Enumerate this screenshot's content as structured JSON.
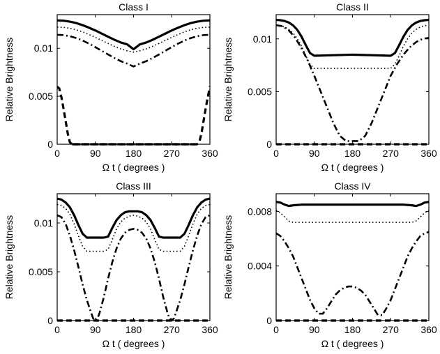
{
  "figure": {
    "background": "#ffffff",
    "line_color": "#000000"
  },
  "chart_data": [
    {
      "type": "line",
      "title": "Class I",
      "xlabel": "Ω t ( degrees )",
      "ylabel": "Relative Brightness",
      "xlim": [
        0,
        360
      ],
      "ylim": [
        0,
        0.0135
      ],
      "xticks": [
        0,
        90,
        180,
        270,
        360
      ],
      "xtick_labels": [
        "0",
        "90",
        "180",
        "270",
        "360"
      ],
      "yticks": [
        0,
        0.005,
        0.01
      ],
      "ytick_labels": [
        "0",
        "0.005",
        "0.01"
      ],
      "grid": false,
      "series": [
        {
          "style": "solid",
          "x": [
            0,
            15,
            30,
            45,
            60,
            75,
            90,
            105,
            120,
            135,
            150,
            165,
            180,
            195,
            210,
            225,
            240,
            255,
            270,
            285,
            300,
            315,
            330,
            345,
            360
          ],
          "y": [
            0.0129,
            0.01287,
            0.01277,
            0.01262,
            0.0124,
            0.01214,
            0.01185,
            0.01153,
            0.0112,
            0.01088,
            0.0106,
            0.0104,
            0.0099,
            0.0104,
            0.0106,
            0.01088,
            0.0112,
            0.01153,
            0.01185,
            0.01214,
            0.0124,
            0.01262,
            0.01277,
            0.01287,
            0.0129
          ]
        },
        {
          "style": "dotted",
          "x": [
            0,
            15,
            30,
            45,
            60,
            75,
            90,
            105,
            120,
            135,
            150,
            165,
            180,
            195,
            210,
            225,
            240,
            255,
            270,
            285,
            300,
            315,
            330,
            345,
            360
          ],
          "y": [
            0.0122,
            0.01217,
            0.01208,
            0.01192,
            0.0117,
            0.01143,
            0.01113,
            0.01082,
            0.0105,
            0.0102,
            0.00993,
            0.00973,
            0.0096,
            0.00973,
            0.00993,
            0.0102,
            0.0105,
            0.01082,
            0.01113,
            0.01143,
            0.0117,
            0.01192,
            0.01208,
            0.01217,
            0.0122
          ]
        },
        {
          "style": "dashdot",
          "x": [
            0,
            15,
            30,
            45,
            60,
            75,
            90,
            105,
            120,
            135,
            150,
            165,
            180,
            195,
            210,
            225,
            240,
            255,
            270,
            285,
            300,
            315,
            330,
            345,
            360
          ],
          "y": [
            0.0114,
            0.01137,
            0.01125,
            0.01106,
            0.0108,
            0.01048,
            0.01012,
            0.00973,
            0.00935,
            0.00898,
            0.00865,
            0.0084,
            0.0081,
            0.0084,
            0.00865,
            0.00898,
            0.00935,
            0.00973,
            0.01012,
            0.01048,
            0.0108,
            0.01106,
            0.01125,
            0.01137,
            0.0114
          ]
        },
        {
          "style": "dashed",
          "x": [
            0,
            5,
            10,
            15,
            20,
            25,
            30,
            35,
            330,
            335,
            340,
            345,
            350,
            355,
            360
          ],
          "y": [
            0.006,
            0.0058,
            0.0049,
            0.0037,
            0.0024,
            0.0011,
            0.0002,
            0,
            0,
            0.0002,
            0.0011,
            0.0024,
            0.0037,
            0.0049,
            0.006
          ]
        },
        {
          "style": "dashed",
          "x": [
            35,
            330
          ],
          "y": [
            0,
            0
          ]
        }
      ]
    },
    {
      "type": "line",
      "title": "Class II",
      "xlabel": "Ω t ( degrees )",
      "ylabel": "Relative Brightness",
      "xlim": [
        0,
        360
      ],
      "ylim": [
        0,
        0.0123
      ],
      "xticks": [
        0,
        90,
        180,
        270,
        360
      ],
      "xtick_labels": [
        "0",
        "90",
        "180",
        "270",
        "360"
      ],
      "yticks": [
        0,
        0.005,
        0.01
      ],
      "ytick_labels": [
        "0",
        "0.005",
        "0.01"
      ],
      "grid": false,
      "series": [
        {
          "style": "solid",
          "x": [
            0,
            10,
            20,
            30,
            40,
            50,
            60,
            70,
            80,
            90,
            180,
            270,
            280,
            290,
            300,
            310,
            320,
            330,
            340,
            350,
            360
          ],
          "y": [
            0.0118,
            0.01177,
            0.0117,
            0.01155,
            0.01128,
            0.01085,
            0.0102,
            0.0094,
            0.00865,
            0.0084,
            0.0085,
            0.0084,
            0.00865,
            0.0094,
            0.0102,
            0.01085,
            0.01128,
            0.01155,
            0.0117,
            0.01177,
            0.0118
          ]
        },
        {
          "style": "dotted",
          "x": [
            0,
            10,
            20,
            30,
            40,
            50,
            60,
            70,
            80,
            90,
            180,
            270,
            280,
            290,
            300,
            310,
            320,
            330,
            340,
            350,
            360
          ],
          "y": [
            0.0113,
            0.01125,
            0.01112,
            0.0109,
            0.01055,
            0.01002,
            0.0093,
            0.0084,
            0.0076,
            0.0072,
            0.0072,
            0.0072,
            0.0076,
            0.0084,
            0.0093,
            0.01002,
            0.01055,
            0.0109,
            0.01112,
            0.01125,
            0.0113
          ]
        },
        {
          "style": "dashdot",
          "x": [
            0,
            15,
            30,
            45,
            60,
            75,
            90,
            105,
            120,
            135,
            150,
            165,
            180,
            195,
            210,
            225,
            240,
            255,
            270,
            285,
            300,
            315,
            330,
            345,
            360
          ],
          "y": [
            0.0113,
            0.0112,
            0.0108,
            0.0101,
            0.0091,
            0.0079,
            0.0065,
            0.005,
            0.0035,
            0.002,
            0.0008,
            0.0003,
            0.0003,
            0.0003,
            0.0008,
            0.002,
            0.0035,
            0.005,
            0.0065,
            0.0076,
            0.0085,
            0.0092,
            0.0097,
            0.01,
            0.0101
          ]
        },
        {
          "style": "dashed",
          "x": [
            0,
            360
          ],
          "y": [
            0,
            0
          ]
        }
      ]
    },
    {
      "type": "line",
      "title": "Class III",
      "xlabel": "Ω t ( degrees )",
      "ylabel": "Relative Brightness",
      "xlim": [
        0,
        360
      ],
      "ylim": [
        0,
        0.013
      ],
      "xticks": [
        0,
        90,
        180,
        270,
        360
      ],
      "xtick_labels": [
        "0",
        "90",
        "180",
        "270",
        "360"
      ],
      "yticks": [
        0,
        0.005,
        0.01
      ],
      "ytick_labels": [
        "0",
        "0.005",
        "0.01"
      ],
      "grid": false,
      "series": [
        {
          "style": "solid",
          "x": [
            0,
            10,
            20,
            30,
            40,
            50,
            60,
            70,
            110,
            120,
            130,
            140,
            150,
            160,
            170,
            180,
            190,
            200,
            210,
            220,
            230,
            240,
            250,
            290,
            300,
            310,
            320,
            330,
            340,
            350,
            360
          ],
          "y": [
            0.0125,
            0.0124,
            0.0121,
            0.0116,
            0.0108,
            0.0098,
            0.0089,
            0.0085,
            0.0085,
            0.0086,
            0.0095,
            0.0103,
            0.0108,
            0.0111,
            0.0112,
            0.0112,
            0.0112,
            0.0111,
            0.0108,
            0.0103,
            0.0095,
            0.0086,
            0.0085,
            0.0085,
            0.0089,
            0.0098,
            0.0108,
            0.0116,
            0.0121,
            0.0124,
            0.0125
          ]
        },
        {
          "style": "dotted",
          "x": [
            0,
            10,
            20,
            30,
            40,
            50,
            60,
            70,
            110,
            120,
            130,
            140,
            150,
            160,
            170,
            180,
            190,
            200,
            210,
            220,
            230,
            240,
            250,
            290,
            300,
            310,
            320,
            330,
            340,
            350,
            360
          ],
          "y": [
            0.0119,
            0.0118,
            0.0115,
            0.0109,
            0.0099,
            0.0087,
            0.0076,
            0.0071,
            0.0071,
            0.0073,
            0.0083,
            0.0094,
            0.0101,
            0.0105,
            0.0107,
            0.0108,
            0.0107,
            0.0105,
            0.0101,
            0.0094,
            0.0083,
            0.0073,
            0.0071,
            0.0071,
            0.0076,
            0.0087,
            0.0099,
            0.0109,
            0.0115,
            0.0118,
            0.0119
          ]
        },
        {
          "style": "dashdot",
          "x": [
            0,
            10,
            20,
            30,
            40,
            50,
            60,
            70,
            80,
            85,
            90,
            95,
            100,
            110,
            120,
            130,
            140,
            150,
            160,
            170,
            180,
            190,
            200,
            210,
            220,
            230,
            240,
            250,
            260,
            265,
            270,
            275,
            280,
            290,
            300,
            310,
            320,
            330,
            340,
            350,
            360
          ],
          "y": [
            0.0108,
            0.0106,
            0.0099,
            0.0087,
            0.0072,
            0.0055,
            0.0037,
            0.0021,
            0.0008,
            0.0002,
            0,
            0.0002,
            0.0008,
            0.0024,
            0.0043,
            0.006,
            0.0074,
            0.0084,
            0.009,
            0.0093,
            0.0094,
            0.0093,
            0.009,
            0.0084,
            0.0074,
            0.006,
            0.0043,
            0.0024,
            0.0008,
            0.0002,
            0,
            0.0002,
            0.0008,
            0.0021,
            0.0037,
            0.0055,
            0.0072,
            0.0087,
            0.0099,
            0.0106,
            0.0108
          ]
        },
        {
          "style": "dashed",
          "x": [
            0,
            360
          ],
          "y": [
            0,
            0
          ]
        }
      ]
    },
    {
      "type": "line",
      "title": "Class IV",
      "xlabel": "Ω t ( degrees )",
      "ylabel": "Relative Brightness",
      "xlim": [
        0,
        360
      ],
      "ylim": [
        0,
        0.0093
      ],
      "xticks": [
        0,
        90,
        180,
        270,
        360
      ],
      "xtick_labels": [
        "0",
        "90",
        "180",
        "270",
        "360"
      ],
      "yticks": [
        0,
        0.004,
        0.008
      ],
      "ytick_labels": [
        "0",
        "0.004",
        "0.008"
      ],
      "grid": false,
      "series": [
        {
          "style": "solid",
          "x": [
            0,
            10,
            20,
            30,
            40,
            60,
            90,
            120,
            150,
            180,
            210,
            240,
            270,
            300,
            320,
            330,
            340,
            350,
            360
          ],
          "y": [
            0.0087,
            0.00865,
            0.0085,
            0.0084,
            0.00845,
            0.0085,
            0.0085,
            0.0085,
            0.0085,
            0.0085,
            0.0085,
            0.0085,
            0.0085,
            0.0085,
            0.00845,
            0.0084,
            0.0085,
            0.00865,
            0.0087
          ]
        },
        {
          "style": "dotted",
          "x": [
            0,
            10,
            20,
            30,
            40,
            60,
            90,
            120,
            150,
            180,
            210,
            240,
            270,
            300,
            320,
            330,
            340,
            350,
            360
          ],
          "y": [
            0.0081,
            0.0079,
            0.0076,
            0.0073,
            0.0072,
            0.0072,
            0.0072,
            0.0072,
            0.0072,
            0.0072,
            0.0072,
            0.0072,
            0.0072,
            0.0072,
            0.0072,
            0.0073,
            0.0076,
            0.0079,
            0.0081
          ]
        },
        {
          "style": "dashdot",
          "x": [
            0,
            10,
            20,
            30,
            40,
            50,
            60,
            70,
            80,
            90,
            100,
            110,
            120,
            130,
            140,
            150,
            160,
            170,
            180,
            190,
            200,
            210,
            220,
            230,
            240,
            250,
            260,
            270,
            280,
            290,
            300,
            310,
            320,
            330,
            340,
            350,
            360
          ],
          "y": [
            0.0064,
            0.0062,
            0.0058,
            0.0053,
            0.0047,
            0.0039,
            0.0031,
            0.0023,
            0.0015,
            0.0009,
            0.0005,
            0.0005,
            0.0009,
            0.0014,
            0.0019,
            0.0022,
            0.0024,
            0.0025,
            0.0025,
            0.0024,
            0.0022,
            0.0019,
            0.0014,
            0.0009,
            0.0004,
            0.0004,
            0.0009,
            0.0015,
            0.0023,
            0.0031,
            0.0039,
            0.0047,
            0.0053,
            0.0058,
            0.0062,
            0.0064,
            0.0065
          ]
        },
        {
          "style": "dashed",
          "x": [
            0,
            360
          ],
          "y": [
            0,
            0
          ]
        }
      ]
    }
  ]
}
